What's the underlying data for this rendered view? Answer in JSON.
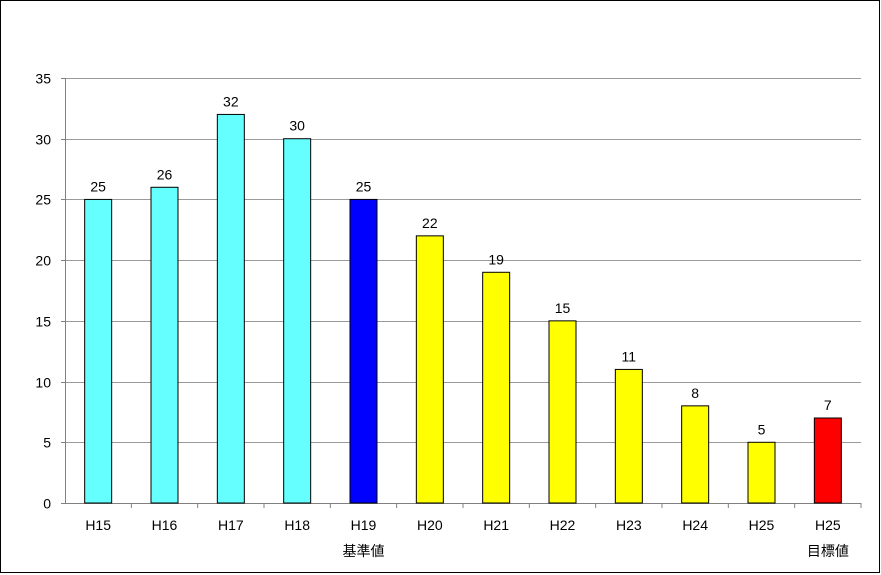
{
  "chart_data": {
    "type": "bar",
    "title": "",
    "xlabel": "",
    "ylabel": "",
    "ylim": [
      0,
      35
    ],
    "yticks": [
      0,
      5,
      10,
      15,
      20,
      25,
      30,
      35
    ],
    "grid": true,
    "legend": "none",
    "categories": [
      "H15",
      "H16",
      "H17",
      "H18",
      "H19",
      "H20",
      "H21",
      "H22",
      "H23",
      "H24",
      "H25",
      "H25"
    ],
    "category_sublabels": [
      "",
      "",
      "",
      "",
      "基準値",
      "",
      "",
      "",
      "",
      "",
      "",
      "目標値"
    ],
    "values": [
      25,
      26,
      32,
      30,
      25,
      22,
      19,
      15,
      11,
      8,
      5,
      7
    ],
    "bar_colors": [
      "#66ffff",
      "#66ffff",
      "#66ffff",
      "#66ffff",
      "#0000ff",
      "#ffff00",
      "#ffff00",
      "#ffff00",
      "#ffff00",
      "#ffff00",
      "#ffff00",
      "#ff0000"
    ],
    "data_labels": true
  }
}
